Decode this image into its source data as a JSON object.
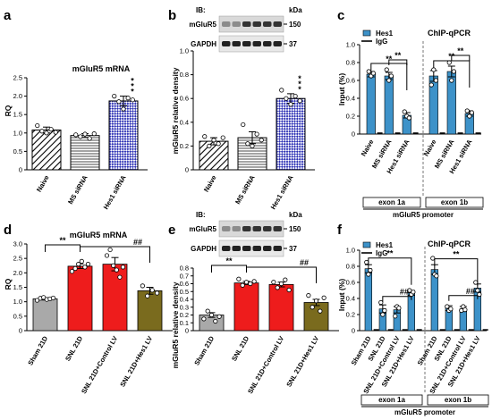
{
  "chart_data": [
    {
      "id": "a",
      "panel_label": "a",
      "type": "bar",
      "title": "mGluR5 mRNA",
      "ylabel": "RQ",
      "ylim": [
        0,
        2.5
      ],
      "yticks": [
        0,
        0.5,
        1.0,
        1.5,
        2.0,
        2.5
      ],
      "categories": [
        "Naive",
        "MS siRNA",
        "Hes1 siRNA"
      ],
      "values": [
        1.08,
        0.93,
        1.87
      ],
      "errors": [
        0.08,
        0.05,
        0.13
      ],
      "fills": [
        "diag",
        "horiz",
        "checker"
      ],
      "points": [
        [
          1.2,
          1.05,
          1.0,
          1.1,
          1.02
        ],
        [
          0.95,
          0.9,
          0.97,
          0.85,
          0.98
        ],
        [
          2.0,
          1.85,
          1.65,
          1.95,
          1.9
        ]
      ],
      "annotations": [
        {
          "index": 2,
          "text": "*"
        },
        {
          "index": 2,
          "text": "*"
        },
        {
          "index": 2,
          "text": "*"
        }
      ]
    },
    {
      "id": "b",
      "panel_label": "b",
      "type": "bar",
      "ylabel": "mGluR5 relative density",
      "ylim": [
        0,
        1.0
      ],
      "yticks": [
        0,
        0.2,
        0.4,
        0.6,
        0.8,
        1.0
      ],
      "categories": [
        "Naive",
        "MS siRNA",
        "Hes1 siRNA"
      ],
      "values": [
        0.24,
        0.27,
        0.6
      ],
      "errors": [
        0.03,
        0.05,
        0.04
      ],
      "fills": [
        "diag",
        "horiz",
        "checker"
      ],
      "points": [
        [
          0.28,
          0.2,
          0.25,
          0.22,
          0.27
        ],
        [
          0.38,
          0.22,
          0.2,
          0.3,
          0.25
        ],
        [
          0.67,
          0.6,
          0.55,
          0.62,
          0.58
        ]
      ],
      "annotations": [
        {
          "index": 2,
          "text": "*"
        },
        {
          "index": 2,
          "text": "*"
        },
        {
          "index": 2,
          "text": "*"
        }
      ],
      "blot": {
        "title": "IB:",
        "unit": "kDa",
        "rows": [
          {
            "label": "mGluR5",
            "kda": "150"
          },
          {
            "label": "GAPDH",
            "kda": "37"
          }
        ]
      }
    },
    {
      "id": "c",
      "panel_label": "c",
      "type": "bar",
      "title": "ChIP-qPCR",
      "ylabel": "Input (%)",
      "ylim": [
        0,
        1.0
      ],
      "yticks": [
        0,
        0.2,
        0.4,
        0.6,
        0.8,
        1.0
      ],
      "series": [
        {
          "name": "Hes1",
          "color": "#3d92c9"
        },
        {
          "name": "IgG",
          "color": "#000000"
        }
      ],
      "groups": [
        {
          "label": "exon 1a",
          "categories": [
            "Naive",
            "MS siRNA",
            "Hes1 siRNA"
          ],
          "hes1": [
            0.67,
            0.65,
            0.21
          ],
          "hes1_err": [
            0.03,
            0.04,
            0.03
          ],
          "igg": [
            0.01,
            0.01,
            0.01
          ],
          "points": [
            [
              0.7,
              0.65,
              0.68
            ],
            [
              0.72,
              0.6,
              0.65
            ],
            [
              0.25,
              0.2,
              0.18
            ]
          ]
        },
        {
          "label": "exon 1b",
          "categories": [
            "Naive",
            "MS siRNA",
            "Hes1 siRNA"
          ],
          "hes1": [
            0.65,
            0.7,
            0.23
          ],
          "hes1_err": [
            0.06,
            0.06,
            0.03
          ],
          "igg": [
            0.01,
            0.01,
            0.01
          ],
          "points": [
            [
              0.55,
              0.72,
              0.6
            ],
            [
              0.8,
              0.6,
              0.7
            ],
            [
              0.26,
              0.2,
              0.24
            ]
          ]
        }
      ],
      "annotations": [
        {
          "text": "**"
        },
        {
          "text": "**"
        },
        {
          "text": "**"
        },
        {
          "text": "**"
        }
      ],
      "xlabel": "mGluR5 promoter"
    },
    {
      "id": "d",
      "panel_label": "d",
      "type": "bar",
      "title": "mGluR5 mRNA",
      "ylabel": "RQ",
      "ylim": [
        0,
        3.0
      ],
      "yticks": [
        0,
        0.5,
        1.0,
        1.5,
        2.0,
        2.5,
        3.0
      ],
      "categories": [
        "Sham 21D",
        "SNL 21D",
        "SNL 21D+Control LV",
        "SNL 21D+Hes1 LV"
      ],
      "values": [
        1.1,
        2.23,
        2.3,
        1.38
      ],
      "errors": [
        0.04,
        0.08,
        0.23,
        0.12
      ],
      "colors": [
        "#a9a9a9",
        "#ee1c1c",
        "#ee1c1c",
        "#7a6b1e"
      ],
      "points": [
        [
          1.05,
          1.12,
          1.15,
          1.08,
          1.1,
          1.13
        ],
        [
          2.05,
          2.15,
          2.3,
          2.4,
          2.2,
          2.3
        ],
        [
          2.6,
          2.8,
          2.25,
          2.1,
          1.85,
          2.2
        ],
        [
          1.55,
          1.2,
          1.4,
          1.3
        ]
      ],
      "annotations": [
        {
          "text": "**"
        },
        {
          "text": "##"
        }
      ]
    },
    {
      "id": "e",
      "panel_label": "e",
      "type": "bar",
      "ylabel": "mGluR5 relative density",
      "ylim": [
        0,
        0.8
      ],
      "yticks": [
        0,
        0.1,
        0.2,
        0.3,
        0.4,
        0.5,
        0.6,
        0.7,
        0.8
      ],
      "categories": [
        "Sham 21D",
        "SNL 21D",
        "SNL 21D+Control LV",
        "SNL 21D+Hes1 LV"
      ],
      "values": [
        0.2,
        0.61,
        0.59,
        0.36
      ],
      "errors": [
        0.03,
        0.02,
        0.03,
        0.04
      ],
      "colors": [
        "#a9a9a9",
        "#ee1c1c",
        "#ee1c1c",
        "#7a6b1e"
      ],
      "points": [
        [
          0.15,
          0.25,
          0.2,
          0.12,
          0.18
        ],
        [
          0.66,
          0.58,
          0.62,
          0.6,
          0.63
        ],
        [
          0.62,
          0.55,
          0.6,
          0.65,
          0.52
        ],
        [
          0.45,
          0.3,
          0.38,
          0.25,
          0.42
        ]
      ],
      "annotations": [
        {
          "text": "**"
        },
        {
          "text": "##"
        }
      ],
      "blot": {
        "title": "IB:",
        "unit": "kDa",
        "rows": [
          {
            "label": "mGluR5",
            "kda": "150"
          },
          {
            "label": "GAPDH",
            "kda": "37"
          }
        ]
      }
    },
    {
      "id": "f",
      "panel_label": "f",
      "type": "bar",
      "title": "ChIP-qPCR",
      "ylabel": "Input (%)",
      "ylim": [
        0,
        1.0
      ],
      "yticks": [
        0,
        0.2,
        0.4,
        0.6,
        0.8,
        1.0
      ],
      "series": [
        {
          "name": "Hes1",
          "color": "#3d92c9"
        },
        {
          "name": "IgG",
          "color": "#000000"
        }
      ],
      "groups": [
        {
          "label": "exon 1a",
          "categories": [
            "Sham 21D",
            "SNL 21D",
            "SNL 21D+Control LV",
            "SNL 21D+Hes1 LV"
          ],
          "hes1": [
            0.77,
            0.27,
            0.26,
            0.47
          ],
          "hes1_err": [
            0.05,
            0.05,
            0.04,
            0.03
          ],
          "igg": [
            0.01,
            0.01,
            0.01,
            0.01
          ],
          "points": [
            [
              0.85,
              0.7,
              0.75
            ],
            [
              0.35,
              0.2,
              0.25
            ],
            [
              0.18,
              0.3,
              0.28
            ],
            [
              0.5,
              0.45,
              0.48
            ]
          ]
        },
        {
          "label": "exon 1b",
          "categories": [
            "Sham 21D",
            "SNL 21D",
            "SNL 21D+Control LV",
            "SNL 21D+Hes1 LV"
          ],
          "hes1": [
            0.76,
            0.28,
            0.27,
            0.53
          ],
          "hes1_err": [
            0.06,
            0.03,
            0.03,
            0.05
          ],
          "igg": [
            0.01,
            0.01,
            0.01,
            0.01
          ],
          "points": [
            [
              0.9,
              0.7,
              0.68
            ],
            [
              0.3,
              0.25,
              0.27
            ],
            [
              0.25,
              0.3,
              0.26
            ],
            [
              0.6,
              0.5,
              0.45
            ]
          ]
        }
      ],
      "annotations": [
        {
          "text": "**"
        },
        {
          "text": "##"
        },
        {
          "text": "**"
        },
        {
          "text": "##"
        }
      ],
      "xlabel": "mGluR5 promoter"
    }
  ]
}
